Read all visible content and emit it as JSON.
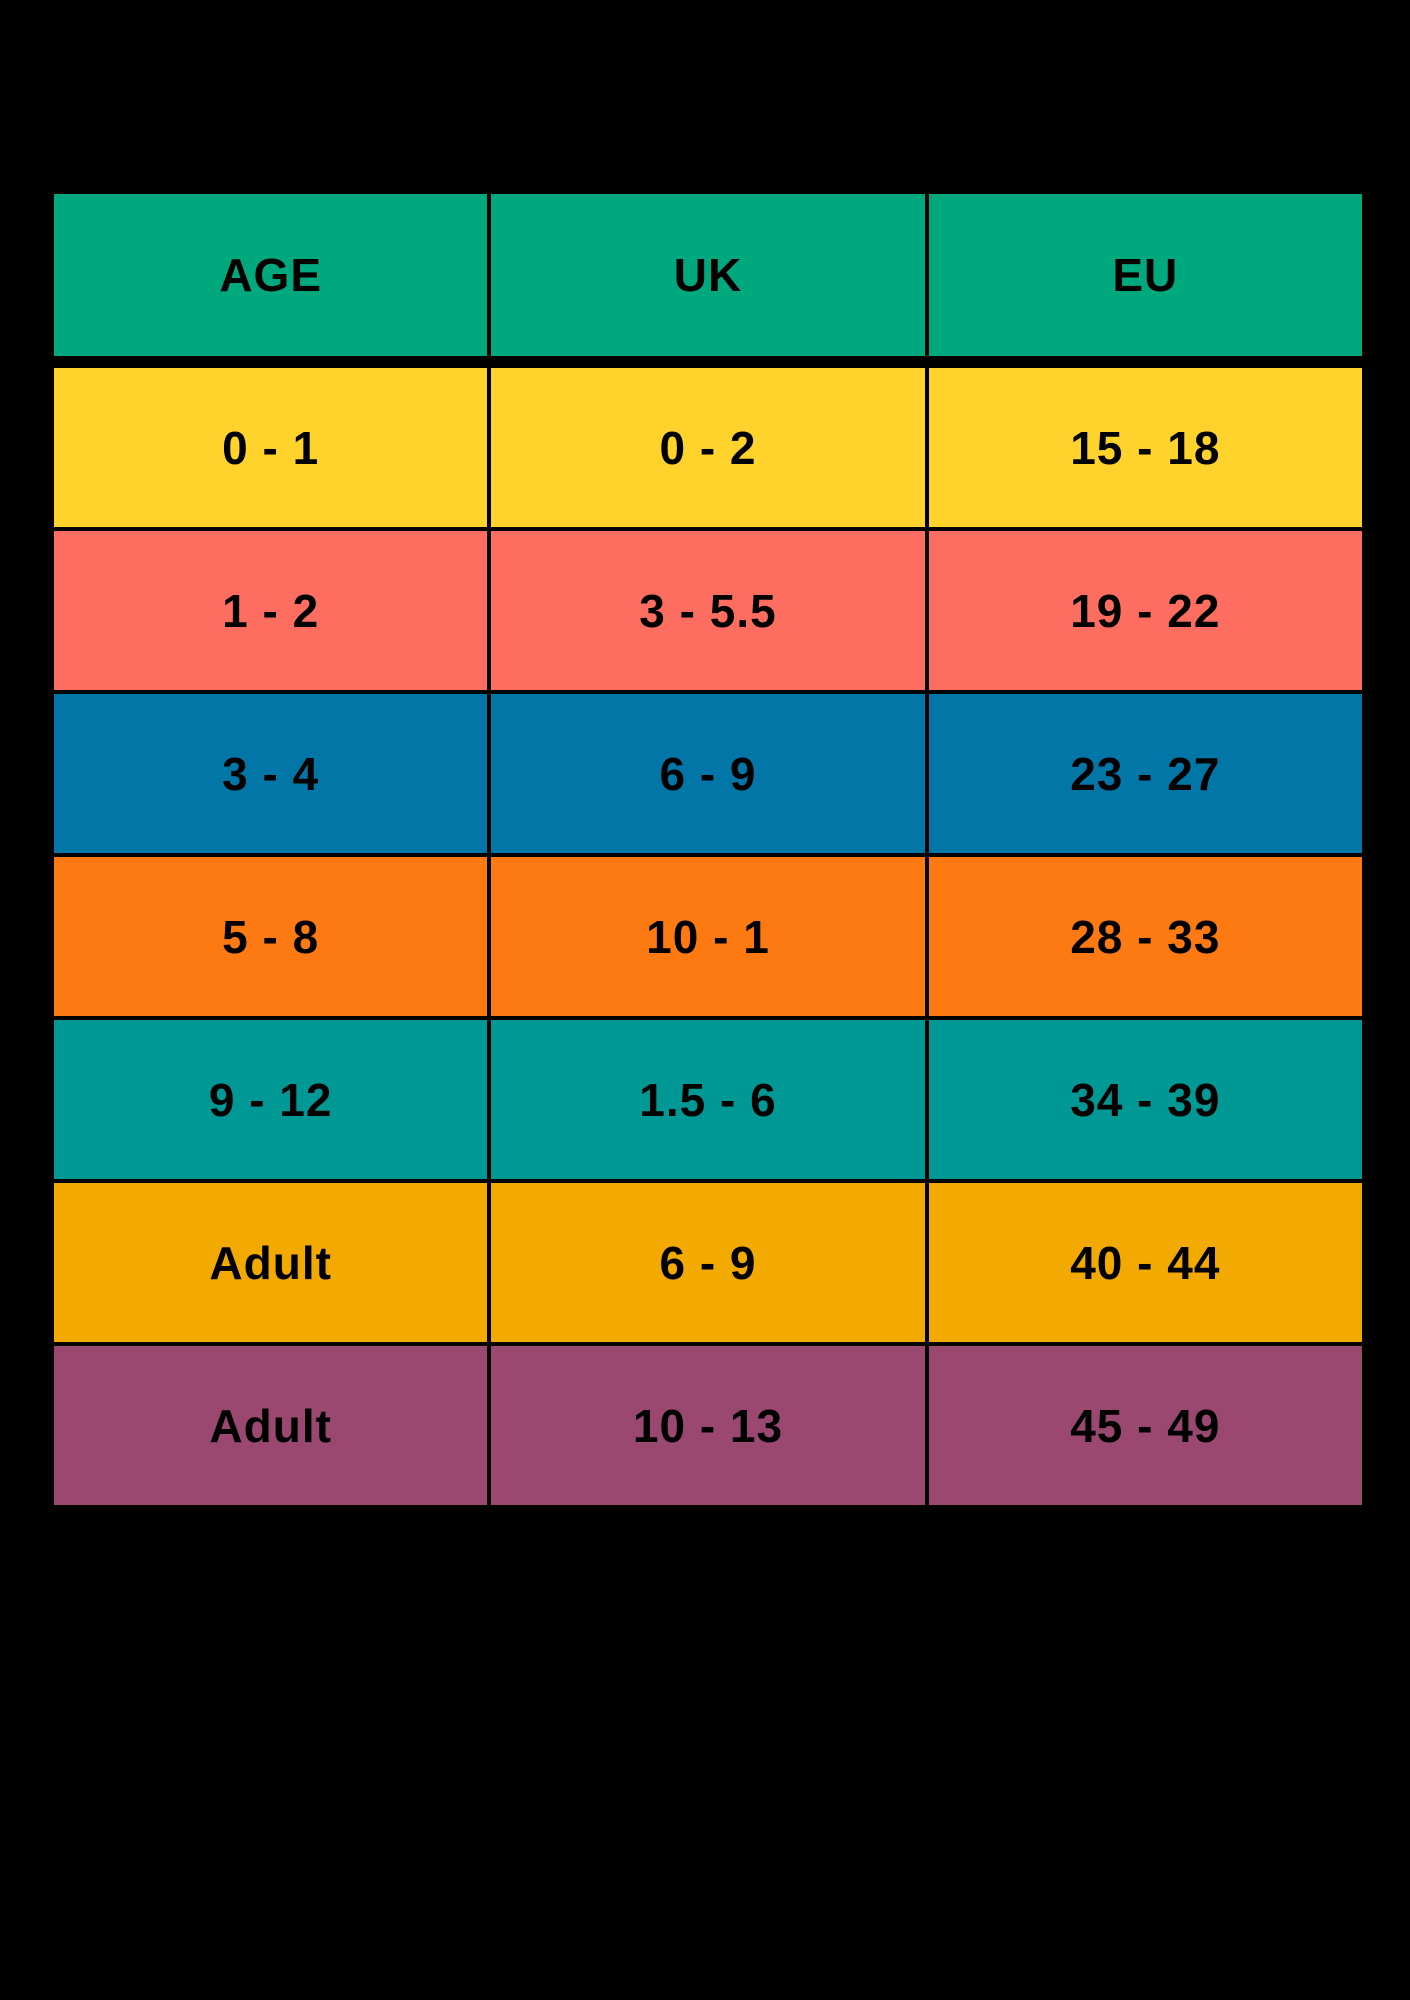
{
  "page": {
    "background": "#000000",
    "text_color": "#000000"
  },
  "chart_data": {
    "type": "table",
    "title": "",
    "columns": [
      "AGE",
      "UK",
      "EU"
    ],
    "header_color": "#00A87E",
    "rows": [
      {
        "color": "#FFD32B",
        "values": [
          "0 - 1",
          "0 - 2",
          "15 - 18"
        ]
      },
      {
        "color": "#FD6E61",
        "values": [
          "1 - 2",
          "3 - 5.5",
          "19 - 22"
        ]
      },
      {
        "color": "#0277A7",
        "values": [
          "3 - 4",
          "6 - 9",
          "23 - 27"
        ]
      },
      {
        "color": "#FD7A13",
        "values": [
          "5 - 8",
          "10 - 1",
          "28 - 33"
        ]
      },
      {
        "color": "#009894",
        "values": [
          "9 - 12",
          "1.5 - 6",
          "34 - 39"
        ]
      },
      {
        "color": "#F2A900",
        "values": [
          "Adult",
          "6 - 9",
          "40 - 44"
        ]
      },
      {
        "color": "#9B4871",
        "values": [
          "Adult",
          "10 - 13",
          "45 - 49"
        ]
      }
    ]
  }
}
